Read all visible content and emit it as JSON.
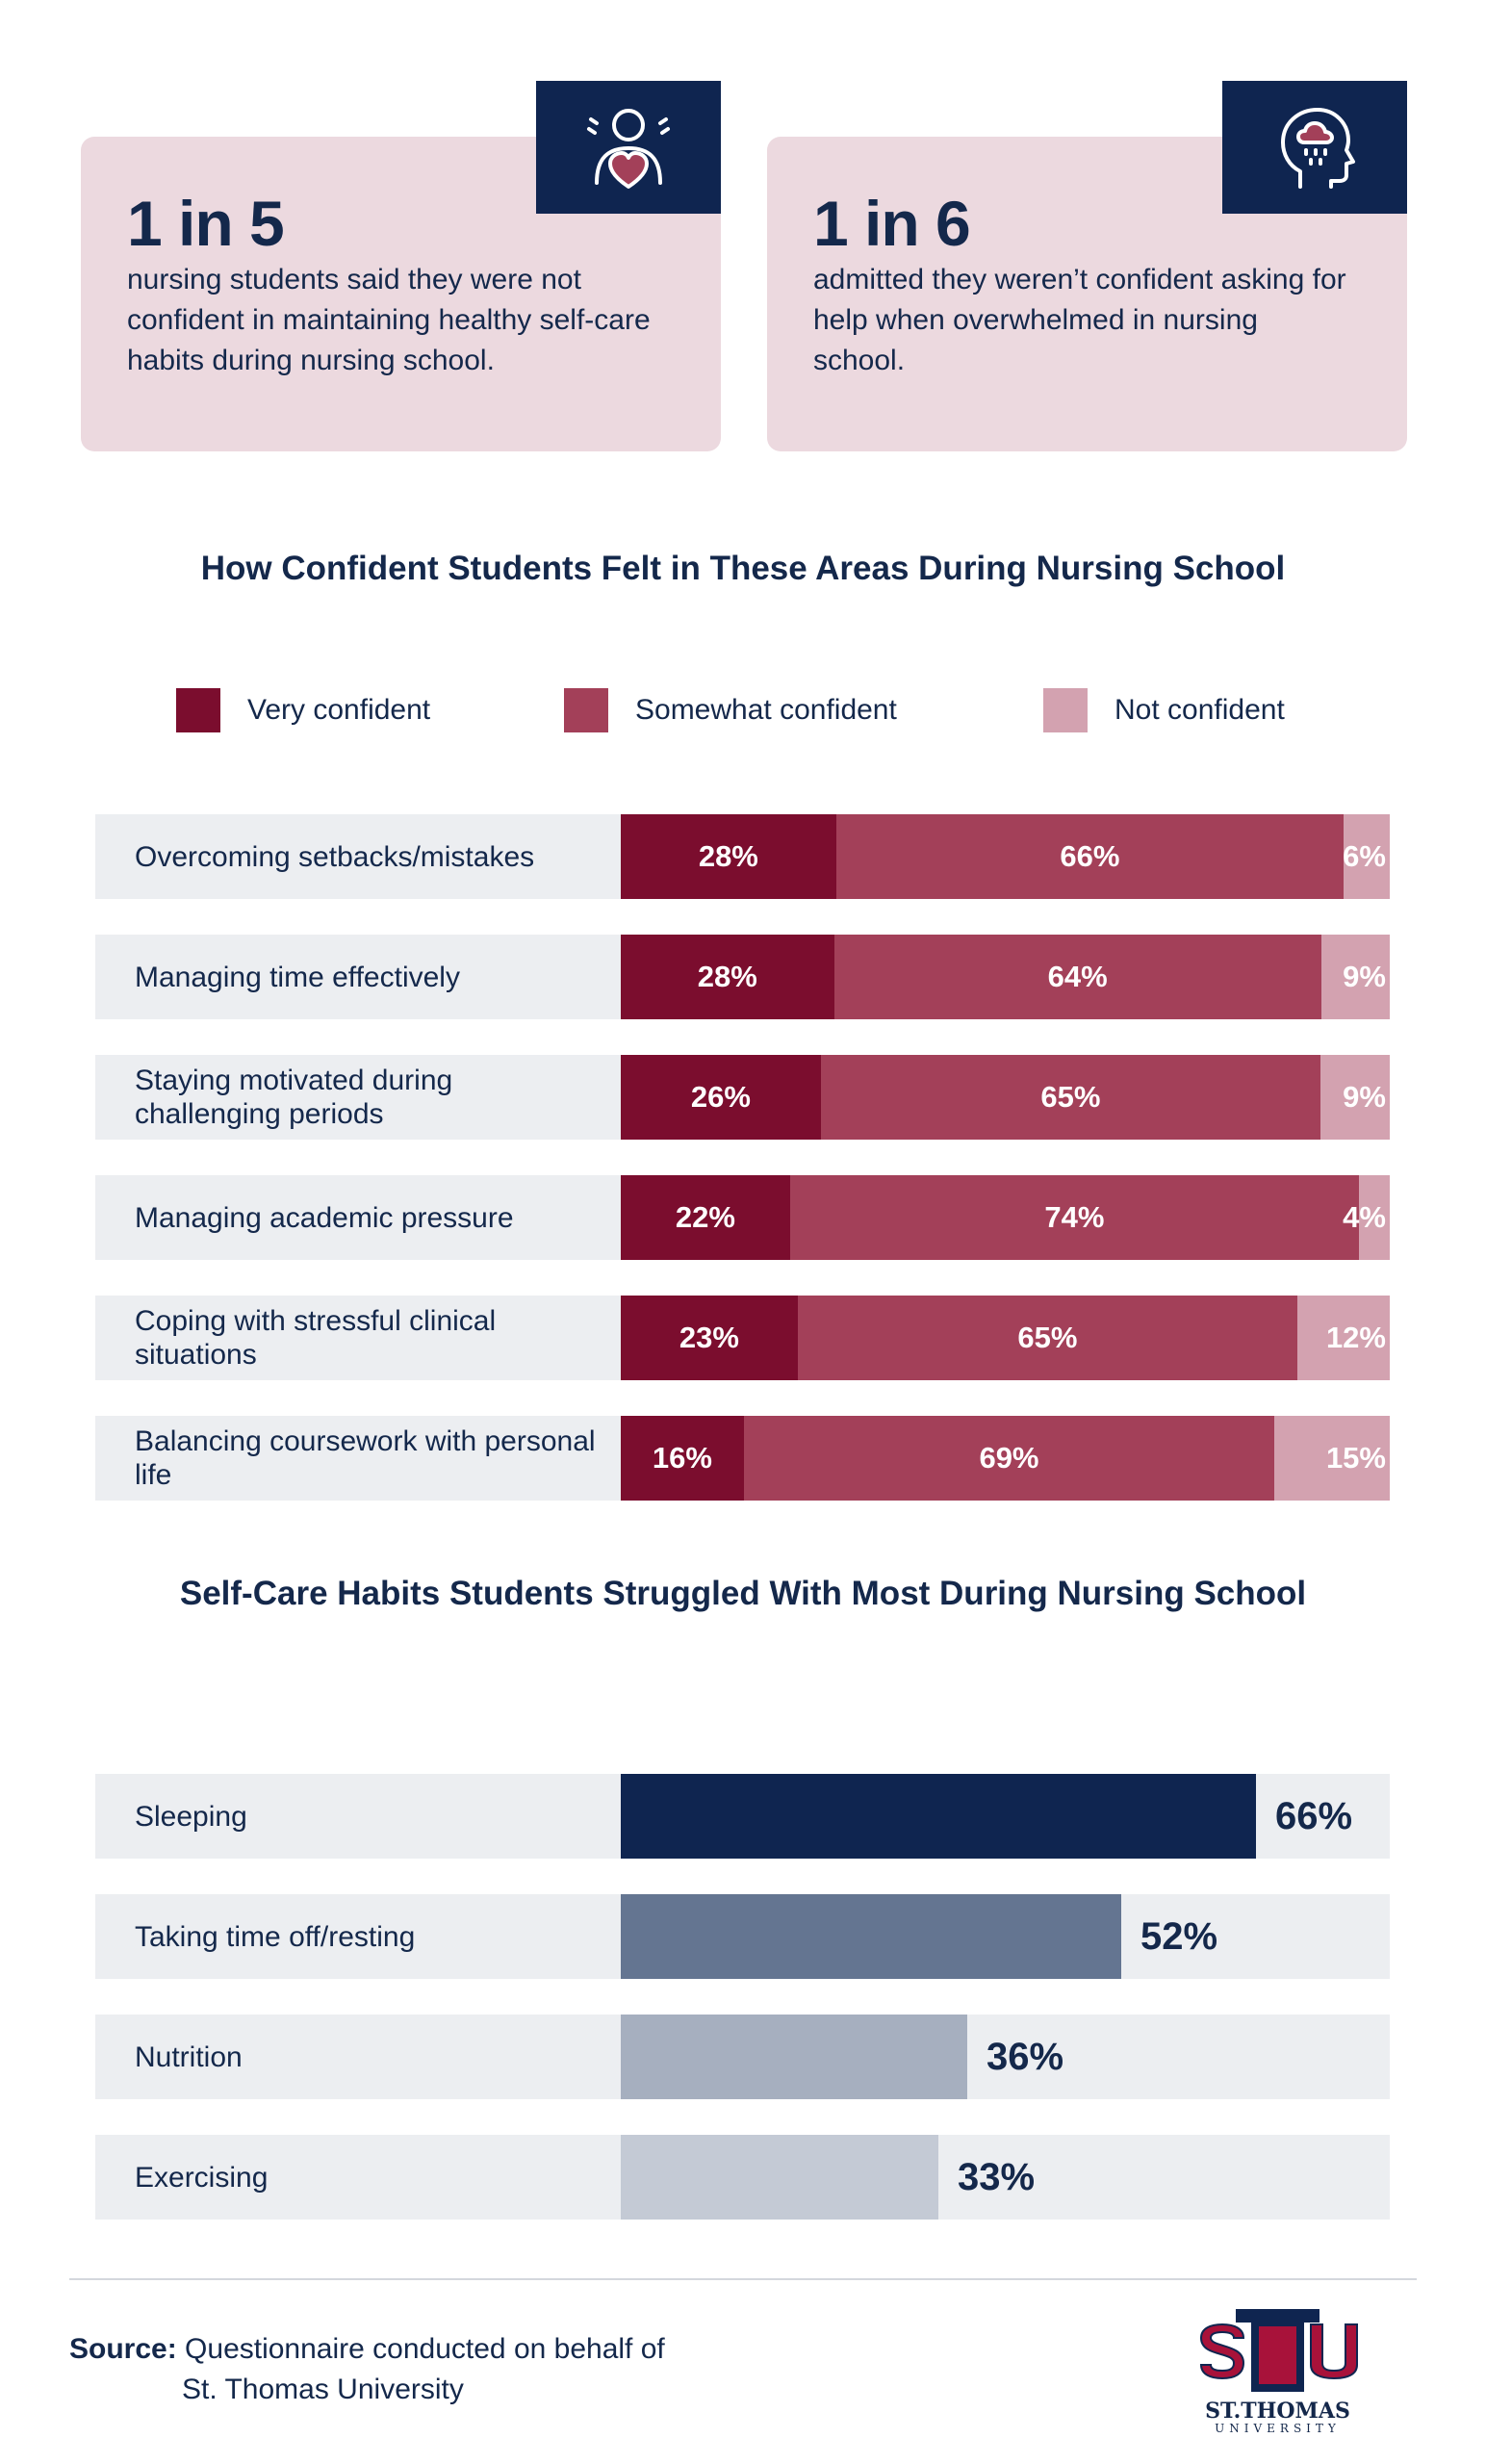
{
  "stats": [
    {
      "headline": "1 in 5",
      "desc": "nursing students said they were not confident in maintaining healthy self-care habits during nursing school.",
      "icon": "heart-person-icon"
    },
    {
      "headline": "1 in 6",
      "desc": "admitted they weren’t confident asking for help when overwhelmed in nursing school.",
      "icon": "head-raincloud-icon"
    }
  ],
  "chart_data": [
    {
      "type": "bar",
      "orientation": "horizontal",
      "stacked": true,
      "title": "How Confident Students Felt in These Areas During Nursing School",
      "categories": [
        "Overcoming setbacks/mistakes",
        "Managing time effectively",
        "Staying motivated during challenging periods",
        "Managing academic pressure",
        "Coping with stressful clinical situations",
        "Balancing coursework with personal life"
      ],
      "series": [
        {
          "name": "Very confident",
          "color": "#7b0d2e",
          "values": [
            28,
            28,
            26,
            22,
            23,
            16
          ],
          "labels": [
            "28%",
            "28%",
            "26%",
            "22%",
            "23%",
            "16%"
          ]
        },
        {
          "name": "Somewhat confident",
          "color": "#a34059",
          "values": [
            66,
            64,
            65,
            74,
            65,
            69
          ],
          "labels": [
            "66%",
            "64%",
            "65%",
            "74%",
            "65%",
            "69%"
          ]
        },
        {
          "name": "Not confident",
          "color": "#d3a2b0",
          "values": [
            6,
            9,
            9,
            4,
            12,
            15
          ],
          "labels": [
            "6%",
            "9%",
            "9%",
            "4%",
            "12%",
            "15%"
          ]
        }
      ],
      "legend": "top",
      "xlim": [
        0,
        100
      ]
    },
    {
      "type": "bar",
      "orientation": "horizontal",
      "title": "Self-Care Habits Students Struggled With Most During Nursing School",
      "categories": [
        "Sleeping",
        "Taking time off/resting",
        "Nutrition",
        "Exercising"
      ],
      "values": [
        66,
        52,
        36,
        33
      ],
      "labels": [
        "66%",
        "52%",
        "36%",
        "33%"
      ],
      "colors": [
        "#0f2550",
        "#647591",
        "#a6afbf",
        "#c4cad5"
      ],
      "xlim": [
        0,
        100
      ]
    }
  ],
  "source": {
    "label": "Source:",
    "line1": "Questionnaire conducted on behalf of",
    "line2": "St. Thomas University"
  },
  "logo": {
    "name": "ST.THOMAS",
    "sub": "UNIVERSITY"
  }
}
